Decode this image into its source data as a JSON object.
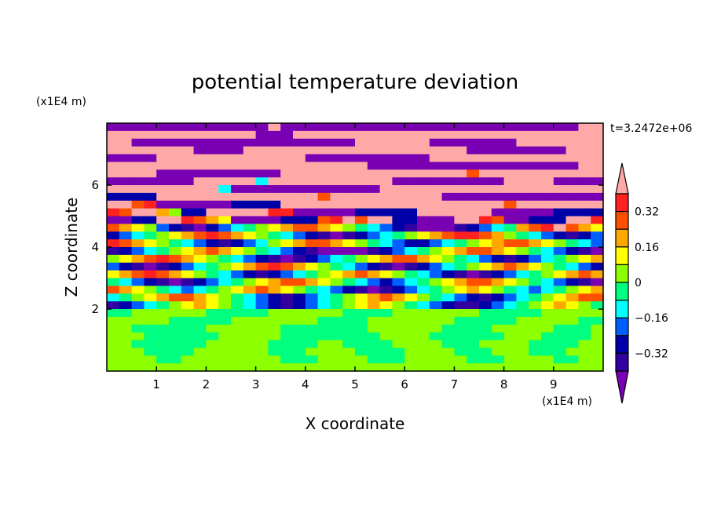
{
  "chart_data": {
    "type": "heatmap",
    "title": "potential temperature deviation",
    "xlabel": "X coordinate",
    "ylabel": "Z coordinate",
    "x_unit": "(x1E4 m)",
    "y_unit": "(x1E4 m)",
    "time_label": "t=3.2472e+06",
    "xlim": [
      0,
      10
    ],
    "ylim": [
      0,
      8
    ],
    "x_ticks": [
      "1",
      "2",
      "3",
      "4",
      "5",
      "6",
      "7",
      "8",
      "9"
    ],
    "y_ticks": [
      "2",
      "4",
      "6"
    ],
    "levels": [
      -0.4,
      -0.32,
      -0.24,
      -0.16,
      -0.08,
      0,
      0.08,
      0.16,
      0.24,
      0.32,
      0.4
    ],
    "colorbar_labels": [
      "0.32",
      "0.16",
      "0",
      "-0.16",
      "-0.32"
    ],
    "colors": [
      "#7a00b4",
      "#3200a0",
      "#0000a8",
      "#0060ff",
      "#00ffff",
      "#00ff80",
      "#8cff00",
      "#ffff00",
      "#ffa800",
      "#ff5000",
      "#ff2020",
      "#ffa8a8"
    ],
    "grid_note": "rows top (z=8) to bottom (z=0); each char is a color-class index 0-B (0 = below -0.4, B = above 0.4)",
    "grid": [
      "0000000000000B000000000000000000000000BB",
      "BBBBBBBBBBBB000BBBBBBBBBBBBBBBBBBBBBBBBB",
      "BB000000000000000000BBBBBB0000000BBBBBBB",
      "BBBBBBB0000BBBBBBBBBBBBBBBBBB00000000BBB",
      "0000BBBBBBBBBBBB0000000000BBBBBBBBBBBBBB",
      "BBBBBBBBBBBBBBBBBBBBB00000000000000000BB",
      "BBBB0000000000BBBBBBBBBBBBBBB9BBBBBBBBBB",
      "0000000BBBBB4BBBBBBBBBB000000000BBBB0000",
      "BBBBBBBBB4000000000000BBBBBBBBBBBBBBBBBB",
      "2222BBBBBBBBBBBBB9BBBBBBBBB0000000000000",
      "BB9A0000002222BBBBBBBBBBBBBBBBBB9BBBBBBB",
      "A9BB8622BBBBBAA0000022222BBBBBB000002222",
      "0022BBA98700002229AB9BB22000BBA900222BBA",
      "98763210234567899876543210001234589AB987",
      "23456789A9876543210123456789AA9865432123",
      "A987654321234678998765432234567899876543",
      "1234567898765432100001234567899876543210",
      "6789A98765432101234567899876543212345678",
      "3210123456789A98765432101234567898765432",
      "789A987654321234567898765432101234567898",
      "5432101234567899876543234567899876543210",
      "9876543456789876543210123456787654345678",
      "4567899876543212345678987654321234567899",
      "1234567876543212345678765432112345678765",
      "5566666655555666666555566666665555566666",
      "6666655555666666655556666666555556666655",
      "6655555566666655555556666665555666665556",
      "6665555556666655555555666655555566655556",
      "6655555566666555566555566665556666555566",
      "6665555666666555666655556666555666555666",
      "6666556666666655566665556666655566665566",
      "6666666666666666666666666666666666666666"
    ]
  }
}
